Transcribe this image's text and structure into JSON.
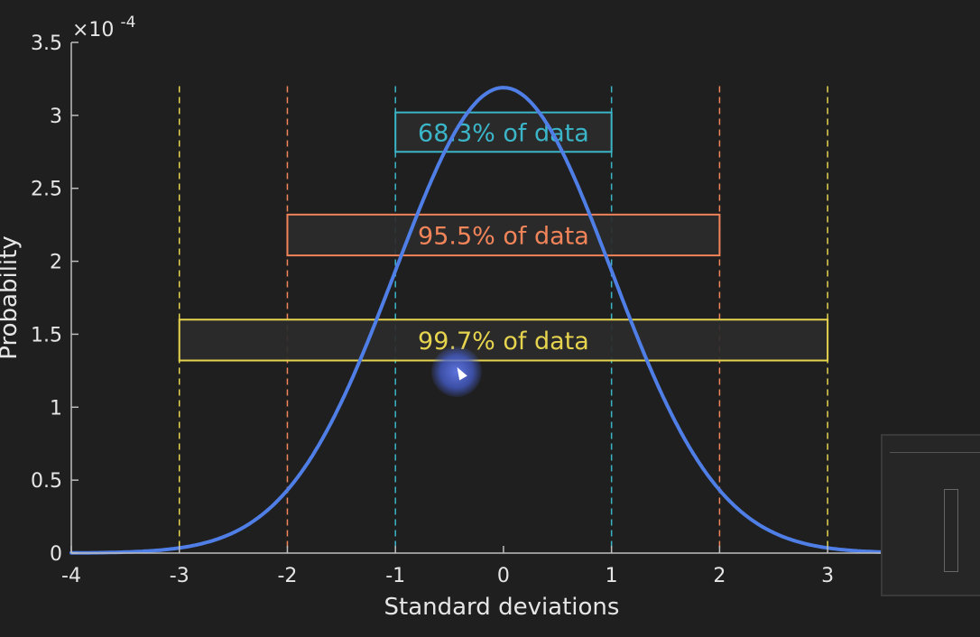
{
  "chart_data": {
    "type": "line",
    "xlabel": "Standard deviations",
    "ylabel": "Probability",
    "exponent_label": "×10",
    "exponent_power": "-4",
    "xlim": [
      -4,
      3.5
    ],
    "ylim": [
      0,
      3.5
    ],
    "x_ticks": [
      "-4",
      "-3",
      "-2",
      "-1",
      "0",
      "1",
      "2",
      "3"
    ],
    "y_ticks": [
      "0",
      "0.5",
      "1",
      "1.5",
      "2",
      "2.5",
      "3",
      "3.5"
    ],
    "grid": false,
    "series": [
      {
        "color": "#4f7fe6",
        "distribution": "normal",
        "mean": 0,
        "sd": 1,
        "peak": 3.19
      }
    ],
    "bands": [
      {
        "label": "68.3% of data",
        "from": -1,
        "to": 1,
        "y_top": 3.02,
        "y_bottom": 2.75,
        "color": "#3bb6c9"
      },
      {
        "label": "95.5% of data",
        "from": -2,
        "to": 2,
        "y_top": 2.32,
        "y_bottom": 2.04,
        "color": "#f2845a"
      },
      {
        "label": "99.7% of data",
        "from": -3,
        "to": 3,
        "y_top": 1.6,
        "y_bottom": 1.32,
        "color": "#e6d44e"
      }
    ],
    "reference_lines": [
      {
        "x": -3,
        "color": "#e6d44e"
      },
      {
        "x": 3,
        "color": "#e6d44e"
      },
      {
        "x": -2,
        "color": "#f2845a"
      },
      {
        "x": 2,
        "color": "#f2845a"
      },
      {
        "x": -1,
        "color": "#3bb6c9"
      },
      {
        "x": 1,
        "color": "#3bb6c9"
      }
    ]
  }
}
